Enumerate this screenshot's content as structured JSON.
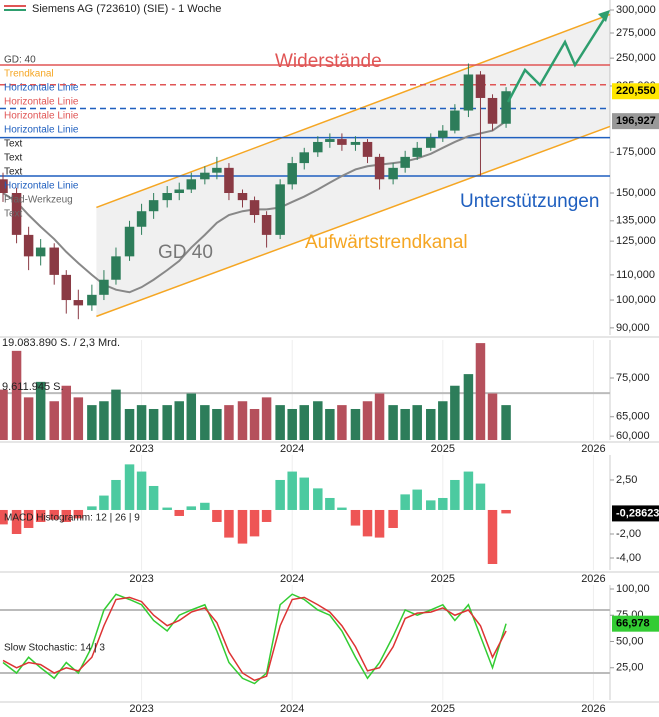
{
  "chart_data": [
    {
      "type": "candlestick",
      "title": "Siemens AG (723610) (SIE) - 1 Woche",
      "log_scale": true,
      "x": [
        2022.08,
        2022.17,
        2022.25,
        2022.33,
        2022.42,
        2022.5,
        2022.58,
        2022.67,
        2022.75,
        2022.83,
        2022.92,
        2023.0,
        2023.08,
        2023.17,
        2023.25,
        2023.33,
        2023.42,
        2023.5,
        2023.58,
        2023.67,
        2023.75,
        2023.83,
        2023.92,
        2024.0,
        2024.08,
        2024.17,
        2024.25,
        2024.33,
        2024.42,
        2024.5,
        2024.58,
        2024.67,
        2024.75,
        2024.83,
        2024.92,
        2025.0,
        2025.08,
        2025.17,
        2025.25,
        2025.33,
        2025.42
      ],
      "open": [
        158,
        150,
        128,
        118,
        122,
        110,
        100,
        98,
        102,
        108,
        118,
        132,
        140,
        146,
        150,
        152,
        158,
        162,
        165,
        150,
        146,
        138,
        128,
        155,
        168,
        175,
        182,
        184,
        180,
        182,
        172,
        158,
        165,
        172,
        178,
        185,
        190,
        205,
        235,
        215,
        195
      ],
      "high": [
        162,
        153,
        132,
        126,
        124,
        112,
        104,
        106,
        112,
        122,
        135,
        144,
        150,
        154,
        156,
        162,
        166,
        172,
        168,
        152,
        148,
        140,
        158,
        172,
        178,
        186,
        188,
        188,
        186,
        184,
        174,
        168,
        176,
        182,
        188,
        194,
        210,
        245,
        238,
        218,
        224
      ],
      "low": [
        145,
        124,
        112,
        114,
        106,
        95,
        93,
        96,
        100,
        106,
        116,
        128,
        136,
        142,
        146,
        150,
        155,
        158,
        146,
        142,
        134,
        122,
        126,
        152,
        164,
        172,
        178,
        176,
        176,
        168,
        152,
        155,
        162,
        170,
        176,
        182,
        188,
        200,
        160,
        190,
        192
      ],
      "close": [
        150,
        128,
        118,
        122,
        110,
        100,
        98,
        102,
        108,
        118,
        132,
        140,
        146,
        150,
        152,
        158,
        162,
        165,
        150,
        146,
        138,
        128,
        155,
        168,
        175,
        182,
        184,
        180,
        182,
        172,
        158,
        165,
        172,
        178,
        185,
        190,
        205,
        235,
        215,
        195,
        220.55
      ],
      "close_last_label": "220,550",
      "ma": {
        "name": "GD 40",
        "color": "#888888",
        "values": [
          150,
          145,
          138,
          132,
          126,
          120,
          115,
          110,
          106,
          104,
          103,
          105,
          108,
          112,
          116,
          122,
          128,
          134,
          138,
          140,
          141,
          141,
          142,
          145,
          148,
          152,
          156,
          160,
          164,
          166,
          167,
          168,
          169,
          171,
          174,
          178,
          182,
          186,
          188,
          190,
          196.927
        ],
        "last_label": "196,927"
      },
      "up_color": "#2d7d5a",
      "down_color": "#8a3a44",
      "xlim": [
        2022.06,
        2026.11
      ],
      "ylim": [
        87.6,
        311.6
      ],
      "yticks": [
        {
          "value": 300,
          "label": "300,000"
        },
        {
          "value": 275,
          "label": "275,000"
        },
        {
          "value": 250,
          "label": "250,000"
        },
        {
          "value": 225,
          "label": "225,000"
        },
        {
          "value": 175,
          "label": "175,000"
        },
        {
          "value": 150,
          "label": "150,000"
        },
        {
          "value": 135,
          "label": "135,000"
        },
        {
          "value": 125,
          "label": "125,000"
        },
        {
          "value": 110,
          "label": "110,000"
        },
        {
          "value": 100,
          "label": "100,000"
        },
        {
          "value": 90,
          "label": "90,000"
        }
      ],
      "trend_channel": {
        "name": "Aufwärtstrendkanal",
        "color": "#f5a623",
        "x": [
          2022.7,
          2026.11
        ],
        "upper": [
          142,
          295
        ],
        "lower": [
          94,
          193
        ]
      },
      "hlines": [
        {
          "value": 243.6,
          "color": "#e05555",
          "dashed": false
        },
        {
          "value": 226,
          "color": "#e05555",
          "dashed": true
        },
        {
          "value": 206.6,
          "color": "#1f5fbf",
          "dashed": true
        },
        {
          "value": 185,
          "color": "#1f5fbf",
          "dashed": false
        },
        {
          "value": 160,
          "color": "#1f5fbf",
          "dashed": false
        }
      ],
      "annotations": [
        "Widerstände",
        "Unterstützungen"
      ],
      "indicators": [
        "GD: 40",
        "Trendkanal",
        "Horizontale Linie",
        "Horizontale Linie",
        "Horizontale Linie",
        "Horizontale Linie",
        "Text",
        "Text",
        "Text",
        "Horizontale Linie",
        "Pfad-Werkzeug",
        "Text"
      ],
      "indicator_colors": [
        "#444444",
        "#f5a623",
        "#1f5fbf",
        "#e05555",
        "#e05555",
        "#1f5fbf",
        "#222222",
        "#222222",
        "#222222",
        "#1f5fbf",
        "#666666",
        "#666666"
      ]
    },
    {
      "type": "bar",
      "annotations": [
        "19.083.890 S. / 2,3 Mrd.",
        "9.611.945 S."
      ],
      "x": [
        2022.08,
        2022.17,
        2022.25,
        2022.33,
        2022.42,
        2022.5,
        2022.58,
        2022.67,
        2022.75,
        2022.83,
        2022.92,
        2023.0,
        2023.08,
        2023.17,
        2023.25,
        2023.33,
        2023.42,
        2023.5,
        2023.58,
        2023.67,
        2023.75,
        2023.83,
        2023.92,
        2024.0,
        2024.08,
        2024.17,
        2024.25,
        2024.33,
        2024.42,
        2024.5,
        2024.58,
        2024.67,
        2024.75,
        2024.83,
        2024.92,
        2025.0,
        2025.08,
        2025.17,
        2025.25,
        2025.33,
        2025.42
      ],
      "values": [
        72,
        82,
        70,
        74,
        69,
        73,
        70,
        68,
        69,
        72,
        67,
        68,
        67,
        68,
        69,
        71,
        68,
        67,
        68,
        69,
        67,
        70,
        68,
        67,
        68,
        69,
        67,
        68,
        67,
        69,
        71,
        68,
        67,
        68,
        67,
        69,
        73,
        76,
        84,
        71,
        68
      ],
      "up_color": "#2d7d5a",
      "down_color": "#b5505c",
      "ref_lines": [
        71.1
      ],
      "xlim": [
        2022.06,
        2026.11
      ],
      "ylim": [
        59,
        84.8
      ],
      "yticks": [
        {
          "value": 75,
          "label": "75,000"
        },
        {
          "value": 65,
          "label": "65,000"
        },
        {
          "value": 60,
          "label": "60,000"
        }
      ],
      "xticks": [
        2023,
        2024,
        2025,
        2026
      ]
    },
    {
      "type": "bar",
      "title": "MACD Histogramm: 12 | 26 | 9",
      "x": [
        2022.08,
        2022.17,
        2022.25,
        2022.33,
        2022.42,
        2022.5,
        2022.58,
        2022.67,
        2022.75,
        2022.83,
        2022.92,
        2023.0,
        2023.08,
        2023.17,
        2023.25,
        2023.33,
        2023.42,
        2023.5,
        2023.58,
        2023.67,
        2023.75,
        2023.83,
        2023.92,
        2024.0,
        2024.08,
        2024.17,
        2024.25,
        2024.33,
        2024.42,
        2024.5,
        2024.58,
        2024.67,
        2024.75,
        2024.83,
        2024.92,
        2025.0,
        2025.08,
        2025.17,
        2025.25,
        2025.33,
        2025.42
      ],
      "values": [
        -1.2,
        -2.0,
        -1.5,
        -1.0,
        -0.8,
        -1.0,
        -0.7,
        0.3,
        1.2,
        2.5,
        3.8,
        3.2,
        2.0,
        0.2,
        -0.5,
        0.3,
        0.6,
        -1.0,
        -2.3,
        -2.8,
        -2.2,
        -1.0,
        2.5,
        3.2,
        2.7,
        1.8,
        1.0,
        0.2,
        -1.3,
        -2.2,
        -2.3,
        -1.5,
        1.3,
        1.7,
        0.8,
        1.0,
        2.5,
        3.2,
        2.2,
        -4.5,
        -0.28623
      ],
      "last_label": "-0,28623",
      "pos_color": "#4ccaa0",
      "neg_color": "#ee5555",
      "xlim": [
        2022.06,
        2026.11
      ],
      "ylim": [
        -5,
        4.58
      ],
      "yticks": [
        {
          "value": 2.5,
          "label": "2,50"
        },
        {
          "value": -2,
          "label": "-2,00"
        },
        {
          "value": -4,
          "label": "-4,00"
        }
      ],
      "xticks": [
        2023,
        2024,
        2025,
        2026
      ]
    },
    {
      "type": "line",
      "title": "Slow Stochastic: 14 | 3",
      "x": [
        2022.08,
        2022.17,
        2022.25,
        2022.33,
        2022.42,
        2022.5,
        2022.58,
        2022.67,
        2022.75,
        2022.83,
        2022.92,
        2023.0,
        2023.08,
        2023.17,
        2023.25,
        2023.33,
        2023.42,
        2023.5,
        2023.58,
        2023.67,
        2023.75,
        2023.83,
        2023.92,
        2024.0,
        2024.08,
        2024.17,
        2024.25,
        2024.33,
        2024.42,
        2024.5,
        2024.58,
        2024.67,
        2024.75,
        2024.83,
        2024.92,
        2025.0,
        2025.08,
        2025.17,
        2025.25,
        2025.33,
        2025.42
      ],
      "series": [
        {
          "name": "%K",
          "color": "#33cc33",
          "values": [
            30,
            20,
            35,
            25,
            15,
            30,
            20,
            45,
            80,
            95,
            90,
            85,
            70,
            60,
            75,
            80,
            85,
            60,
            30,
            15,
            10,
            20,
            85,
            95,
            90,
            80,
            75,
            60,
            35,
            15,
            30,
            55,
            80,
            75,
            80,
            85,
            70,
            85,
            55,
            25,
            66.978
          ]
        },
        {
          "name": "%D",
          "color": "#dd3333",
          "values": [
            32,
            25,
            30,
            28,
            20,
            25,
            22,
            35,
            65,
            90,
            92,
            88,
            75,
            65,
            70,
            78,
            82,
            68,
            40,
            20,
            13,
            17,
            65,
            90,
            92,
            85,
            78,
            65,
            45,
            22,
            25,
            45,
            72,
            77,
            78,
            82,
            75,
            80,
            65,
            35,
            60
          ]
        }
      ],
      "last_label": "66,978",
      "ref_lines": [
        80,
        20
      ],
      "xlim": [
        2022.06,
        2026.11
      ],
      "ylim": [
        -5.7,
        103.8
      ],
      "yticks": [
        {
          "value": 100,
          "label": "100,00"
        },
        {
          "value": 75,
          "label": "75,00"
        },
        {
          "value": 50,
          "label": "50,00"
        },
        {
          "value": 25,
          "label": "25,00"
        }
      ],
      "xticks": [
        2023,
        2024,
        2025,
        2026
      ]
    }
  ]
}
